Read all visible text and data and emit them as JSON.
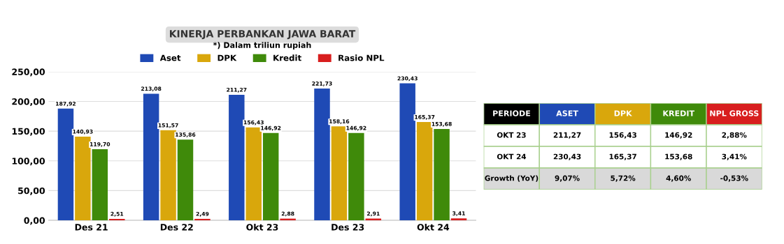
{
  "chart_data": [
    {
      "type": "bar",
      "title": "KINERJA PERBANKAN JAWA BARAT",
      "subtitle": "*) Dalam triliun rupiah",
      "categories": [
        "Des 21",
        "Des 22",
        "Okt 23",
        "Des 23",
        "Okt 24"
      ],
      "series": [
        {
          "name": "Aset",
          "color": "#1f4ab5",
          "values": [
            187.92,
            213.08,
            211.27,
            221.73,
            230.43
          ],
          "value_labels": [
            "187,92",
            "213,08",
            "211,27",
            "221,73",
            "230,43"
          ]
        },
        {
          "name": "DPK",
          "color": "#d9a70c",
          "values": [
            140.93,
            151.57,
            156.43,
            158.16,
            165.37
          ],
          "value_labels": [
            "140,93",
            "151,57",
            "156,43",
            "158,16",
            "165,37"
          ]
        },
        {
          "name": "Kredit",
          "color": "#3f8a0a",
          "values": [
            119.7,
            135.86,
            146.92,
            146.92,
            153.68
          ],
          "value_labels": [
            "119,70",
            "135,86",
            "146,92",
            "146,92",
            "153,68"
          ]
        },
        {
          "name": "Rasio NPL",
          "color": "#d81e1e",
          "values": [
            2.51,
            2.49,
            2.88,
            2.91,
            3.41
          ],
          "value_labels": [
            "2,51",
            "2,49",
            "2,88",
            "2,91",
            "3,41"
          ]
        }
      ],
      "ylim": [
        0,
        250
      ],
      "yticks": [
        {
          "value": 0,
          "label": "0,00"
        },
        {
          "value": 50,
          "label": "50,00"
        },
        {
          "value": 100,
          "label": "100,00"
        },
        {
          "value": 150,
          "label": "150,00"
        },
        {
          "value": 200,
          "label": "200,00"
        },
        {
          "value": 250,
          "label": "250,00"
        }
      ],
      "grid": "y",
      "legend": "top"
    },
    {
      "type": "other",
      "categories": [
        "PERIODE",
        "ASET",
        "DPK",
        "KREDIT",
        "NPL GROSS"
      ],
      "colors": [
        "#000000",
        "#1f4ab5",
        "#d9a70c",
        "#3f8a0a",
        "#d81e1e"
      ],
      "y_categories": [
        "OKT 23",
        "OKT 24",
        "Growth (YoY)"
      ],
      "cell_labels": [
        [
          "211,27",
          "156,43",
          "146,92",
          "2,88%"
        ],
        [
          "230,43",
          "165,37",
          "153,68",
          "3,41%"
        ],
        [
          "9,07%",
          "5,72%",
          "4,60%",
          "-0,53%"
        ]
      ]
    }
  ]
}
